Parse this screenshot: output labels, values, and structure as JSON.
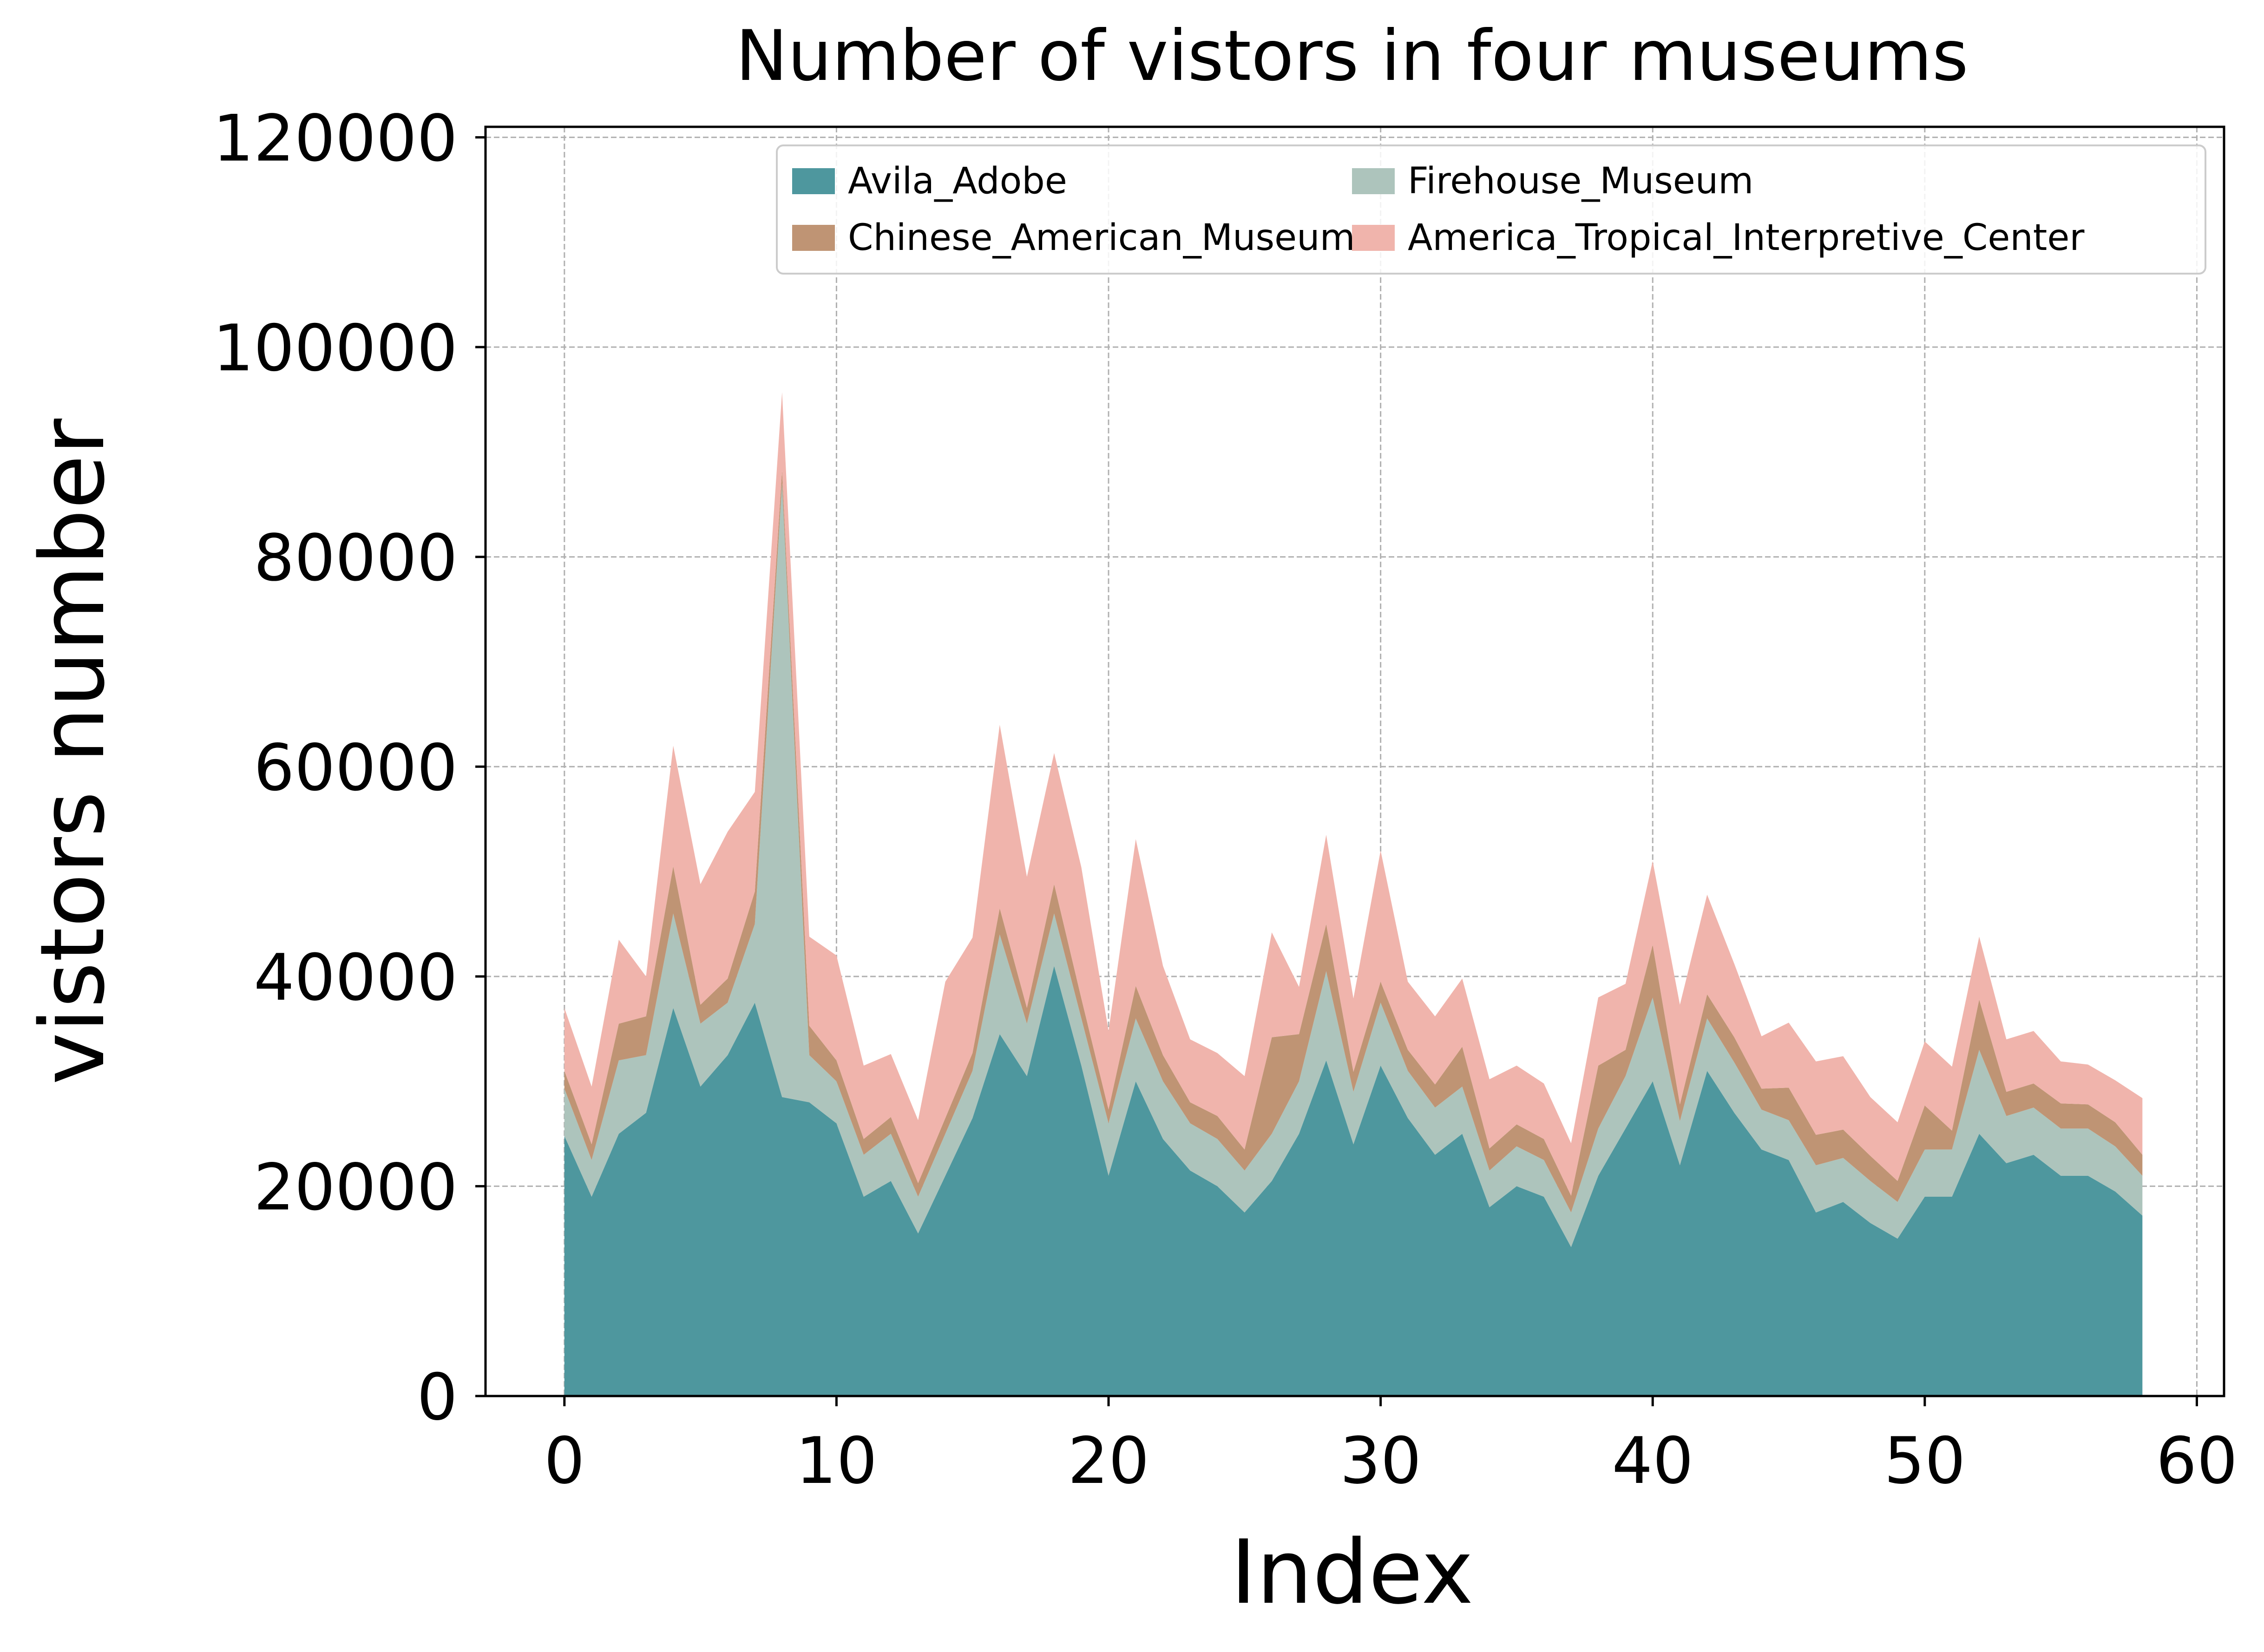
{
  "chart_data": {
    "type": "area",
    "stacked": true,
    "title": "Number of vistors in four museums",
    "xlabel": "Index",
    "ylabel": "vistors number",
    "xlim": [
      -2.9,
      61
    ],
    "ylim": [
      0,
      121000
    ],
    "xticks": [
      0,
      10,
      20,
      30,
      40,
      50,
      60
    ],
    "yticks": [
      0,
      20000,
      40000,
      60000,
      80000,
      100000,
      120000
    ],
    "xtick_labels": [
      "0",
      "10",
      "20",
      "30",
      "40",
      "50",
      "60"
    ],
    "ytick_labels": [
      "0",
      "20000",
      "40000",
      "60000",
      "80000",
      "100000",
      "120000"
    ],
    "grid": true,
    "legend": {
      "position": "top-right",
      "columns": 2
    },
    "x": [
      0,
      1,
      2,
      3,
      4,
      5,
      6,
      7,
      8,
      9,
      10,
      11,
      12,
      13,
      14,
      15,
      16,
      17,
      18,
      19,
      20,
      21,
      22,
      23,
      24,
      25,
      26,
      27,
      28,
      29,
      30,
      31,
      32,
      33,
      34,
      35,
      36,
      37,
      38,
      39,
      40,
      41,
      42,
      43,
      44,
      45,
      46,
      47,
      48,
      49,
      50,
      51,
      52,
      53,
      54,
      55,
      56,
      57,
      58
    ],
    "series": [
      {
        "name": "Avila_Adobe",
        "color": "#4e979e",
        "values": [
          24800,
          19000,
          25000,
          27000,
          37000,
          29500,
          32500,
          37500,
          28500,
          28000,
          26000,
          19000,
          20500,
          15500,
          21000,
          26500,
          34500,
          30500,
          41000,
          31500,
          21000,
          30000,
          24500,
          21500,
          20000,
          17500,
          20500,
          25000,
          32000,
          24000,
          31500,
          26500,
          23000,
          25000,
          18000,
          20000,
          19000,
          14200,
          21000,
          25500,
          30000,
          22000,
          31000,
          27000,
          23500,
          22500,
          17500,
          18500,
          16500,
          15000,
          19000,
          19000,
          25000,
          22200,
          23000,
          21000,
          21000,
          19500,
          17200
        ]
      },
      {
        "name": "Firehouse_Museum",
        "color": "#adc4bc",
        "values": [
          4500,
          3500,
          7000,
          5500,
          9000,
          6000,
          5000,
          7500,
          58500,
          4500,
          4000,
          4000,
          4500,
          3500,
          4000,
          4500,
          9500,
          5000,
          5000,
          4500,
          5000,
          6000,
          5500,
          4500,
          4500,
          4000,
          4500,
          5000,
          8500,
          5000,
          6000,
          4500,
          4500,
          4500,
          3500,
          3800,
          3500,
          3300,
          4500,
          5000,
          8000,
          4200,
          5000,
          4800,
          3800,
          3800,
          4500,
          4200,
          4000,
          3500,
          4500,
          4500,
          8000,
          4500,
          4500,
          4500,
          4500,
          4300,
          3800
        ]
      },
      {
        "name": "Chinese_American_Museum",
        "color": "#bf9474",
        "values": [
          1700,
          1500,
          3500,
          3700,
          4500,
          1800,
          2300,
          3100,
          1200,
          2800,
          2000,
          1500,
          1600,
          1300,
          1500,
          1700,
          2500,
          1500,
          2800,
          1900,
          1300,
          3100,
          2500,
          2000,
          2200,
          2000,
          9200,
          4500,
          4500,
          1900,
          2000,
          2000,
          2200,
          3800,
          2100,
          2100,
          2000,
          1600,
          6000,
          2500,
          5000,
          1600,
          2300,
          2400,
          2000,
          3100,
          2900,
          2700,
          2400,
          2000,
          4200,
          1800,
          4800,
          2300,
          2300,
          2400,
          2300,
          2300,
          2000
        ]
      },
      {
        "name": "America_Tropical_Interpretive_Center",
        "color": "#f0b4ac",
        "values": [
          6000,
          5500,
          8000,
          3800,
          11500,
          11500,
          14000,
          9500,
          7500,
          8500,
          10000,
          7000,
          6000,
          6000,
          13000,
          11000,
          17500,
          12500,
          12500,
          12500,
          7500,
          14000,
          8500,
          6000,
          6000,
          7000,
          10000,
          4500,
          8500,
          7000,
          12500,
          6500,
          6500,
          6500,
          6600,
          5600,
          5300,
          5000,
          6500,
          6300,
          8000,
          9500,
          9500,
          7000,
          5000,
          6200,
          7000,
          7000,
          5600,
          5600,
          6100,
          6100,
          6000,
          5000,
          5000,
          4000,
          3800,
          4000,
          5400
        ]
      }
    ]
  }
}
